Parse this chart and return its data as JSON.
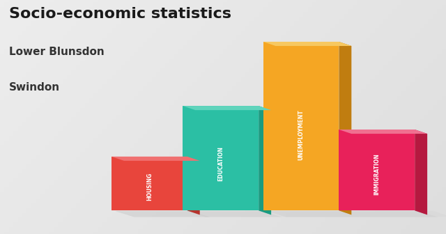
{
  "title": "Socio-economic statistics",
  "subtitle1": "Lower Blunsdon",
  "subtitle2": "Swindon",
  "categories": [
    "HOUSING",
    "EDUCATION",
    "UNEMPLOYMENT",
    "IMMIGRATION"
  ],
  "values": [
    0.32,
    0.62,
    1.0,
    0.48
  ],
  "bar_front_colors": [
    "#E8453C",
    "#2BBFA4",
    "#F5A623",
    "#E8215A"
  ],
  "bar_right_colors": [
    "#B5342D",
    "#1A9B80",
    "#C07D10",
    "#B5193F"
  ],
  "bar_top_colors": [
    "#F07070",
    "#60D4BC",
    "#F7C860",
    "#F07090"
  ],
  "shadow_color": "#CCCCCC",
  "background_color": "#E8E8E8",
  "title_color": "#1A1A1A",
  "subtitle_color": "#333333",
  "label_color": "#FFFFFF",
  "figsize": [
    6.4,
    3.36
  ],
  "dpi": 100
}
